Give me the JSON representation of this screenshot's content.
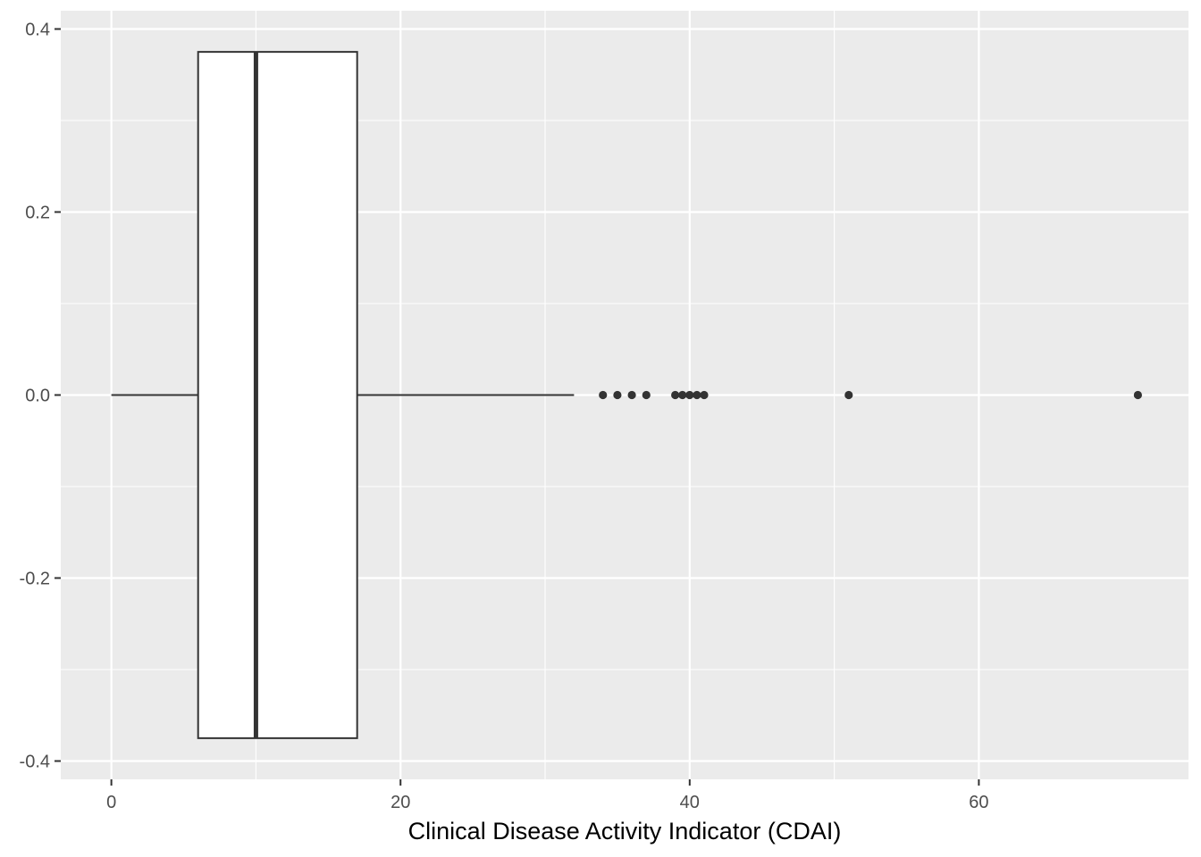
{
  "chart_data": {
    "type": "boxplot",
    "orientation": "horizontal",
    "title": "",
    "xlabel": "Clinical Disease Activity Indicator (CDAI)",
    "ylabel": "",
    "xlim": [
      -3.5,
      74.5
    ],
    "ylim": [
      -0.42,
      0.42
    ],
    "x_ticks": [
      0,
      20,
      40,
      60
    ],
    "x_tick_labels": [
      "0",
      "20",
      "40",
      "60"
    ],
    "y_ticks": [
      0.4,
      0.2,
      0.0,
      -0.2,
      -0.4
    ],
    "y_tick_labels": [
      "0.4",
      "0.2",
      "0.0",
      "-0.2",
      "-0.4"
    ],
    "grid": true,
    "box": {
      "whisker_low": 0,
      "q1": 6,
      "median": 10,
      "q3": 17,
      "whisker_high": 32,
      "y_center": 0,
      "half_height": 0.375
    },
    "outliers": [
      34,
      35,
      36,
      37,
      39,
      39.5,
      40,
      40.5,
      41,
      51,
      71
    ],
    "colors": {
      "panel_background": "#EBEBEB",
      "grid_line": "#FFFFFF",
      "box_fill": "#FFFFFF",
      "box_line": "#333333",
      "outlier": "#333333"
    }
  }
}
